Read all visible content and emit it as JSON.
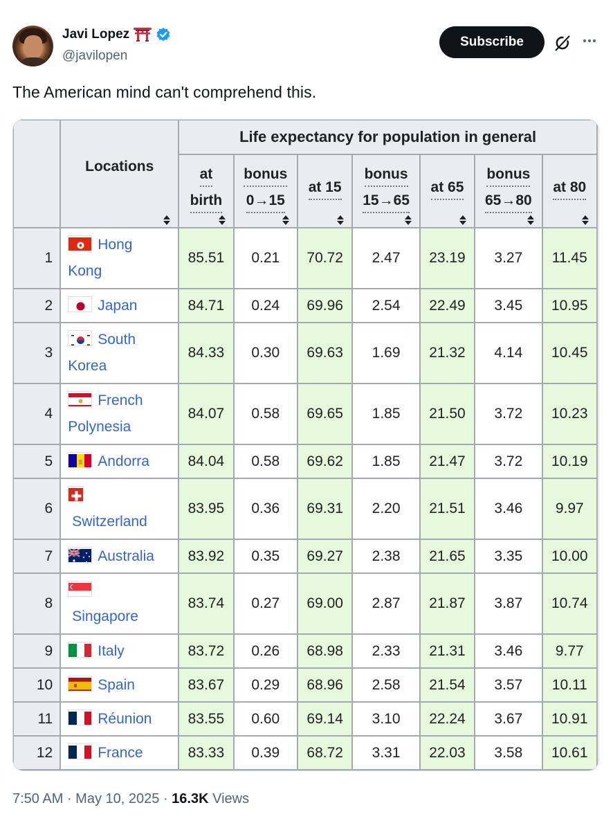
{
  "author": {
    "display_name": "Javi Lopez",
    "handle": "@javilopen",
    "emoji": "torii-gate",
    "verified": true
  },
  "actions": {
    "subscribe_label": "Subscribe",
    "grok_icon": "grok-icon",
    "more_icon": "more-icon"
  },
  "tweet": {
    "text": "The American mind can't comprehend this."
  },
  "table": {
    "group_header": "Life expectancy for population in general",
    "locations_header": "Locations",
    "columns": [
      {
        "line1": "at",
        "line2": "birth"
      },
      {
        "line1": "bonus",
        "line2": "0→15"
      },
      {
        "line1": "at 15",
        "line2": ""
      },
      {
        "line1": "bonus",
        "line2": "15→65"
      },
      {
        "line1": "at 65",
        "line2": ""
      },
      {
        "line1": "bonus",
        "line2": "65→80"
      },
      {
        "line1": "at 80",
        "line2": ""
      }
    ],
    "rows": [
      {
        "rank": "1",
        "loc1": "Hong",
        "loc2": "Kong",
        "flag": "hong-kong",
        "vals": [
          "85.51",
          "0.21",
          "70.72",
          "2.47",
          "23.19",
          "3.27",
          "11.45"
        ]
      },
      {
        "rank": "2",
        "loc1": "Japan",
        "loc2": "",
        "flag": "japan",
        "vals": [
          "84.71",
          "0.24",
          "69.96",
          "2.54",
          "22.49",
          "3.45",
          "10.95"
        ]
      },
      {
        "rank": "3",
        "loc1": "South",
        "loc2": "Korea",
        "flag": "south-korea",
        "vals": [
          "84.33",
          "0.30",
          "69.63",
          "1.69",
          "21.32",
          "4.14",
          "10.45"
        ]
      },
      {
        "rank": "4",
        "loc1": "French",
        "loc2": "Polynesia",
        "flag": "french-polynesia",
        "vals": [
          "84.07",
          "0.58",
          "69.65",
          "1.85",
          "21.50",
          "3.72",
          "10.23"
        ]
      },
      {
        "rank": "5",
        "loc1": "Andorra",
        "loc2": "",
        "flag": "andorra",
        "vals": [
          "84.04",
          "0.58",
          "69.62",
          "1.85",
          "21.47",
          "3.72",
          "10.19"
        ]
      },
      {
        "rank": "6",
        "loc1": "",
        "loc2": "Switzerland",
        "flag": "switzerland",
        "vals": [
          "83.95",
          "0.36",
          "69.31",
          "2.20",
          "21.51",
          "3.46",
          "9.97"
        ]
      },
      {
        "rank": "7",
        "loc1": "Australia",
        "loc2": "",
        "flag": "australia",
        "vals": [
          "83.92",
          "0.35",
          "69.27",
          "2.38",
          "21.65",
          "3.35",
          "10.00"
        ]
      },
      {
        "rank": "8",
        "loc1": "",
        "loc2": "Singapore",
        "flag": "singapore",
        "vals": [
          "83.74",
          "0.27",
          "69.00",
          "2.87",
          "21.87",
          "3.87",
          "10.74"
        ]
      },
      {
        "rank": "9",
        "loc1": "Italy",
        "loc2": "",
        "flag": "italy",
        "vals": [
          "83.72",
          "0.26",
          "68.98",
          "2.33",
          "21.31",
          "3.46",
          "9.77"
        ]
      },
      {
        "rank": "10",
        "loc1": "Spain",
        "loc2": "",
        "flag": "spain",
        "vals": [
          "83.67",
          "0.29",
          "68.96",
          "2.58",
          "21.54",
          "3.57",
          "10.11"
        ]
      },
      {
        "rank": "11",
        "loc1": "Réunion",
        "loc2": "",
        "flag": "france",
        "vals": [
          "83.55",
          "0.60",
          "69.14",
          "3.10",
          "22.24",
          "3.67",
          "10.91"
        ]
      },
      {
        "rank": "12",
        "loc1": "France",
        "loc2": "",
        "flag": "france",
        "vals": [
          "83.33",
          "0.39",
          "68.72",
          "3.31",
          "22.03",
          "3.58",
          "10.61"
        ]
      }
    ]
  },
  "colors": {
    "highlight_cell": "#e6f9dc",
    "header_bg": "#eaecf0",
    "link": "#3366cc",
    "subscribe_bg": "#0f1419"
  },
  "footer": {
    "time": "7:50 AM",
    "date": "May 10, 2025",
    "views_count": "16.3K",
    "views_label": "Views"
  }
}
